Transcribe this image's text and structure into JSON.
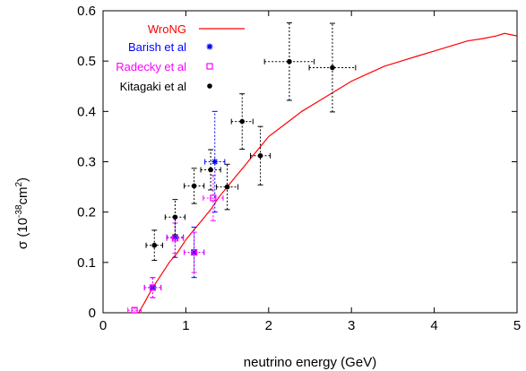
{
  "chart_data": {
    "type": "scatter",
    "xlabel": "neutrino energy (GeV)",
    "ylabel": {
      "prefix": "σ (10",
      "exp1": "-38",
      "mid": "cm",
      "exp2": "2",
      "suffix": ")"
    },
    "xlim": [
      0,
      5
    ],
    "ylim": [
      0,
      0.6
    ],
    "xticks": [
      0,
      1,
      2,
      3,
      4,
      5
    ],
    "yticks": [
      0,
      0.1,
      0.2,
      0.3,
      0.4,
      0.5,
      0.6
    ],
    "xtick_labels": [
      "0",
      "1",
      "2",
      "3",
      "4",
      "5"
    ],
    "ytick_labels": [
      "0",
      "0.1",
      "0.2",
      "0.3",
      "0.4",
      "0.5",
      "0.6"
    ],
    "grid": false,
    "legend_position": "top-left",
    "series": [
      {
        "name": "WroNG",
        "kind": "line",
        "color": "#ff0000",
        "points": [
          [
            0.43,
            0.0
          ],
          [
            0.5,
            0.02
          ],
          [
            0.6,
            0.05
          ],
          [
            0.7,
            0.075
          ],
          [
            0.8,
            0.1
          ],
          [
            0.9,
            0.12
          ],
          [
            1.0,
            0.145
          ],
          [
            1.1,
            0.165
          ],
          [
            1.2,
            0.185
          ],
          [
            1.3,
            0.205
          ],
          [
            1.4,
            0.23
          ],
          [
            1.5,
            0.25
          ],
          [
            1.6,
            0.27
          ],
          [
            1.7,
            0.29
          ],
          [
            1.8,
            0.31
          ],
          [
            1.9,
            0.33
          ],
          [
            2.0,
            0.35
          ],
          [
            2.2,
            0.375
          ],
          [
            2.4,
            0.4
          ],
          [
            2.6,
            0.42
          ],
          [
            2.8,
            0.44
          ],
          [
            3.0,
            0.46
          ],
          [
            3.2,
            0.475
          ],
          [
            3.4,
            0.49
          ],
          [
            3.6,
            0.5
          ],
          [
            3.8,
            0.51
          ],
          [
            4.0,
            0.52
          ],
          [
            4.2,
            0.53
          ],
          [
            4.4,
            0.54
          ],
          [
            4.6,
            0.545
          ],
          [
            4.75,
            0.55
          ],
          [
            4.85,
            0.555
          ],
          [
            5.0,
            0.55
          ]
        ]
      },
      {
        "name": "Barish et al",
        "kind": "points",
        "marker": "star",
        "color": "#0000ff",
        "points": [
          {
            "x": 0.6,
            "y": 0.05,
            "xerr": 0.1,
            "yerr": 0.02
          },
          {
            "x": 0.87,
            "y": 0.15,
            "xerr": 0.1,
            "yerr": 0.04
          },
          {
            "x": 1.1,
            "y": 0.12,
            "xerr": 0.12,
            "yerr": 0.05
          },
          {
            "x": 1.35,
            "y": 0.3,
            "xerr": 0.12,
            "yerr": 0.1
          }
        ]
      },
      {
        "name": "Radecky et al",
        "kind": "points",
        "marker": "open-square",
        "color": "#ff00ff",
        "points": [
          {
            "x": 0.38,
            "y": 0.005,
            "xerr": 0.08,
            "yerr": 0.005
          },
          {
            "x": 0.6,
            "y": 0.05,
            "xerr": 0.1,
            "yerr": 0.02
          },
          {
            "x": 0.87,
            "y": 0.148,
            "xerr": 0.1,
            "yerr": 0.03
          },
          {
            "x": 1.1,
            "y": 0.12,
            "xerr": 0.12,
            "yerr": 0.04
          },
          {
            "x": 1.33,
            "y": 0.228,
            "xerr": 0.12,
            "yerr": 0.045
          }
        ]
      },
      {
        "name": "Kitagaki et al",
        "kind": "points",
        "marker": "filled-circle",
        "color": "#000000",
        "points": [
          {
            "x": 0.62,
            "y": 0.134,
            "xerr": 0.1,
            "yerr": 0.03
          },
          {
            "x": 0.87,
            "y": 0.19,
            "xerr": 0.12,
            "yerr": 0.035
          },
          {
            "x": 1.1,
            "y": 0.252,
            "xerr": 0.12,
            "yerr": 0.035
          },
          {
            "x": 1.3,
            "y": 0.284,
            "xerr": 0.12,
            "yerr": 0.04
          },
          {
            "x": 1.5,
            "y": 0.25,
            "xerr": 0.13,
            "yerr": 0.045
          },
          {
            "x": 1.68,
            "y": 0.38,
            "xerr": 0.13,
            "yerr": 0.055
          },
          {
            "x": 1.9,
            "y": 0.312,
            "xerr": 0.12,
            "yerr": 0.058
          },
          {
            "x": 2.25,
            "y": 0.499,
            "xerr": 0.3,
            "yerr": 0.077
          },
          {
            "x": 2.77,
            "y": 0.487,
            "xerr": 0.28,
            "yerr": 0.088
          }
        ]
      }
    ]
  }
}
